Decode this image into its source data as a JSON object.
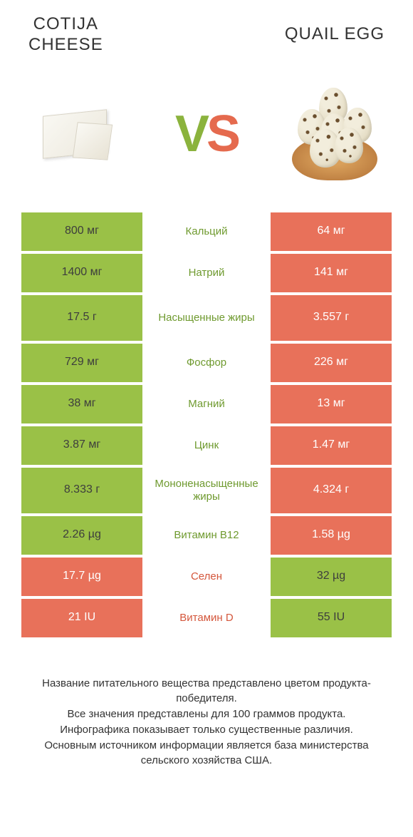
{
  "colors": {
    "green": "#9ac147",
    "orange": "#e8715a",
    "green_text": "#6f9a2f",
    "orange_text": "#d4573c",
    "background": "#ffffff"
  },
  "header": {
    "left": "COTIJA\nCHEESE",
    "right": "QUAIL EGG"
  },
  "vs": {
    "v": "V",
    "s": "S"
  },
  "rows": [
    {
      "left": "800 мг",
      "label": "Кальций",
      "right": "64 мг",
      "winner": "left",
      "tall": false
    },
    {
      "left": "1400 мг",
      "label": "Натрий",
      "right": "141 мг",
      "winner": "left",
      "tall": false
    },
    {
      "left": "17.5 г",
      "label": "Насыщенные жиры",
      "right": "3.557 г",
      "winner": "left",
      "tall": true
    },
    {
      "left": "729 мг",
      "label": "Фосфор",
      "right": "226 мг",
      "winner": "left",
      "tall": false
    },
    {
      "left": "38 мг",
      "label": "Магний",
      "right": "13 мг",
      "winner": "left",
      "tall": false
    },
    {
      "left": "3.87 мг",
      "label": "Цинк",
      "right": "1.47 мг",
      "winner": "left",
      "tall": false
    },
    {
      "left": "8.333 г",
      "label": "Мононенасыщенные жиры",
      "right": "4.324 г",
      "winner": "left",
      "tall": true
    },
    {
      "left": "2.26 µg",
      "label": "Витамин B12",
      "right": "1.58 µg",
      "winner": "left",
      "tall": false
    },
    {
      "left": "17.7 µg",
      "label": "Селен",
      "right": "32 µg",
      "winner": "right",
      "tall": false
    },
    {
      "left": "21 IU",
      "label": "Витамин D",
      "right": "55 IU",
      "winner": "right",
      "tall": false
    }
  ],
  "label_color_rule": "label text uses green when winner=left, orange when winner=right; loser cell background uses the opposite color",
  "footnote": "Название питательного вещества представлено цветом продукта-победителя.\nВсе значения представлены для 100 граммов продукта.\nИнфографика показывает только существенные различия.\nОсновным источником информации является база министерства сельского хозяйства США."
}
